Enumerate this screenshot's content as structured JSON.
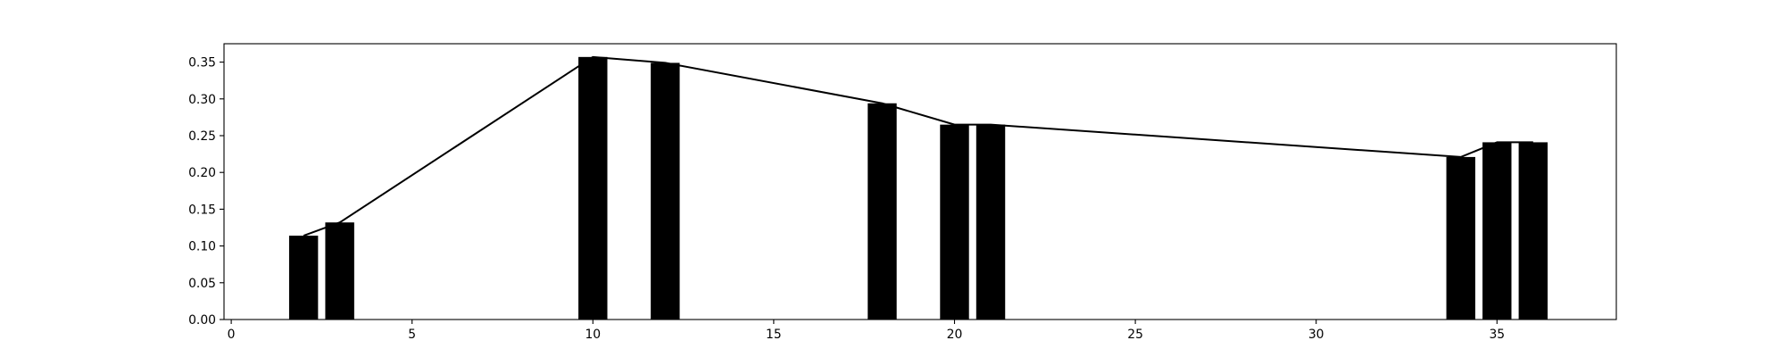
{
  "chart_data": {
    "type": "bar",
    "title": "",
    "xlabel": "",
    "ylabel": "",
    "xlim": [
      -0.2,
      38.3
    ],
    "ylim": [
      0.0,
      0.375
    ],
    "x_ticks": [
      0,
      5,
      10,
      15,
      20,
      25,
      30,
      35
    ],
    "y_ticks": [
      0.0,
      0.05,
      0.1,
      0.15,
      0.2,
      0.25,
      0.3,
      0.35
    ],
    "y_tick_labels": [
      "0.00",
      "0.05",
      "0.10",
      "0.15",
      "0.20",
      "0.25",
      "0.30",
      "0.35"
    ],
    "grid": false,
    "legend": "none",
    "bar_width": 0.8,
    "bar_color": "#000000",
    "line_color": "#000000",
    "bars": [
      {
        "x": 2,
        "value": 0.114
      },
      {
        "x": 3,
        "value": 0.132
      },
      {
        "x": 10,
        "value": 0.357
      },
      {
        "x": 12,
        "value": 0.349
      },
      {
        "x": 18,
        "value": 0.294
      },
      {
        "x": 20,
        "value": 0.265
      },
      {
        "x": 21,
        "value": 0.265
      },
      {
        "x": 34,
        "value": 0.221
      },
      {
        "x": 35,
        "value": 0.241
      },
      {
        "x": 36,
        "value": 0.241
      }
    ],
    "line": [
      {
        "x": 2,
        "y": 0.114
      },
      {
        "x": 3,
        "y": 0.132
      },
      {
        "x": 10,
        "y": 0.357
      },
      {
        "x": 12,
        "y": 0.349
      },
      {
        "x": 18,
        "y": 0.294
      },
      {
        "x": 20,
        "y": 0.265
      },
      {
        "x": 21,
        "y": 0.265
      },
      {
        "x": 34,
        "y": 0.221
      },
      {
        "x": 35,
        "y": 0.241
      },
      {
        "x": 36,
        "y": 0.241
      }
    ]
  }
}
